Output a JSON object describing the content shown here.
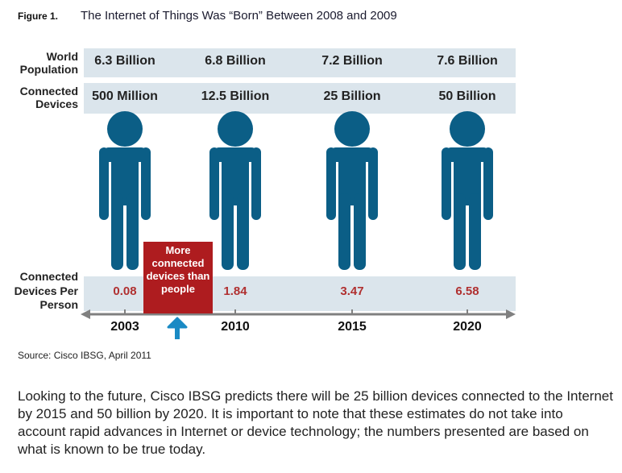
{
  "figure": {
    "label": "Figure 1.",
    "title": "The Internet of Things Was “Born” Between 2008 and 2009"
  },
  "rows": {
    "population": "World Population",
    "devices": "Connected Devices",
    "per_person": "Connected Devices Per Person"
  },
  "columns": [
    {
      "year": "2003",
      "population": "6.3 Billion",
      "devices": "500 Million",
      "per_person": "0.08"
    },
    {
      "year": "2010",
      "population": "6.8 Billion",
      "devices": "12.5 Billion",
      "per_person": "1.84"
    },
    {
      "year": "2015",
      "population": "7.2 Billion",
      "devices": "25 Billion",
      "per_person": "3.47"
    },
    {
      "year": "2020",
      "population": "7.6 Billion",
      "devices": "50 Billion",
      "per_person": "6.58"
    }
  ],
  "callout": "More connected devices than people",
  "source": "Source: Cisco IBSG, April 2011",
  "paragraph": "Looking to the future, Cisco IBSG predicts there will be 25 billion devices connected to the Internet by 2015 and 50 billion by 2020. It is important to note that these estimates do not take into account rapid advances in Internet or device technology; the numbers presented are based on what is known to be true today.",
  "colors": {
    "band": "#dbe5ec",
    "person": "#0b5e86",
    "callout": "#ae1c1f",
    "value": "#b03030",
    "arrow": "#1a8ac4"
  }
}
